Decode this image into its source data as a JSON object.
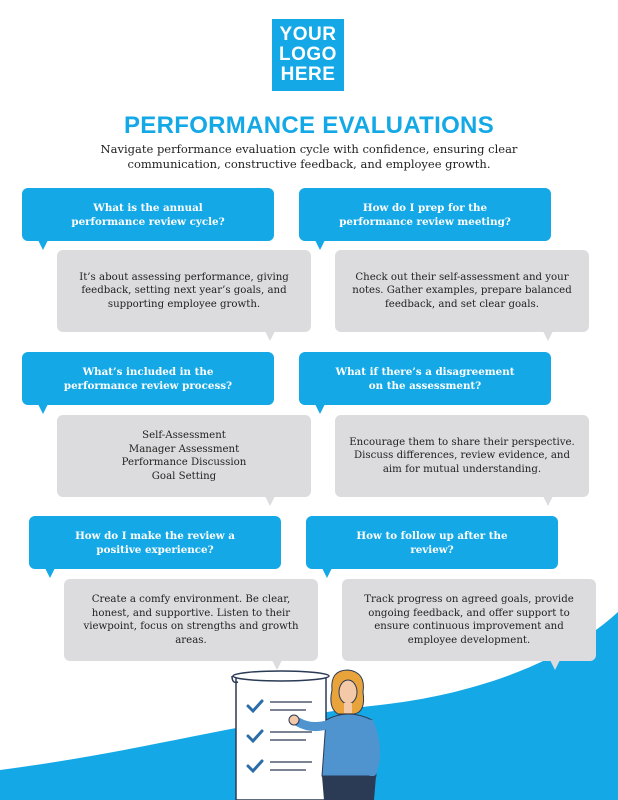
{
  "logo": {
    "lines": [
      "YOUR",
      "LOGO",
      "HERE"
    ]
  },
  "title": "PERFORMANCE EVALUATIONS",
  "subtitle": "Navigate performance evaluation  cycle with confidence, ensuring clear communication, constructive feedback, and employee growth.",
  "faq": [
    {
      "question": "What is the annual performance review cycle?",
      "answer": "It’s about assessing performance, giving feedback, setting next year’s goals, and supporting employee growth."
    },
    {
      "question": "How do I prep for the performance review meeting?",
      "answer": "Check out their self-assessment and your notes. Gather examples, prepare balanced feedback, and set clear goals."
    },
    {
      "question": "What’s included in the performance review process?",
      "answer_list": [
        "Self-Assessment",
        "Manager Assessment",
        "Performance Discussion",
        "Goal Setting"
      ]
    },
    {
      "question": "What if there’s a disagreement on the assessment?",
      "answer": "Encourage them to share their perspective. Discuss differences, review evidence, and aim for mutual understanding."
    },
    {
      "question": "How do I make the review a positive experience?",
      "answer": "Create a comfy environment. Be clear, honest, and supportive. Listen to their viewpoint, focus on strengths and growth areas."
    },
    {
      "question": "How to follow up after the review?",
      "answer": "Track progress on agreed goals, provide ongoing feedback, and offer support to ensure continuous improvement and employee development."
    }
  ],
  "colors": {
    "accent": "#14a9e6",
    "bubble_gray": "#dcdcde",
    "text": "#222222"
  }
}
